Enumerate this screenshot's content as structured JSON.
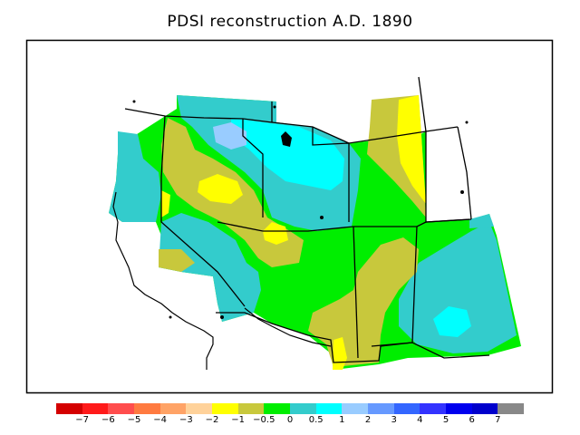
{
  "title": "PDSI reconstruction A.D. 1890",
  "legend": {
    "colors": [
      "#d40000",
      "#ff1a1a",
      "#ff4d4d",
      "#ff7a40",
      "#ffa366",
      "#ffd29a",
      "#ffff00",
      "#c8c83c",
      "#00ee00",
      "#33cccc",
      "#00ffff",
      "#99ccff",
      "#6699ff",
      "#3366ff",
      "#3333ff",
      "#0000ee",
      "#0000cc",
      "#888888"
    ],
    "labels": [
      "−7",
      "−6",
      "−5",
      "−4",
      "−3",
      "−2",
      "−1",
      "−0.5",
      "0",
      "0.5",
      "1",
      "2",
      "3",
      "4",
      "5",
      "6",
      "7"
    ]
  },
  "palette": {
    "wet_mid": "#33cccc",
    "wet": "#00ffff",
    "wetter": "#99ccff",
    "near_normal": "#00ee00",
    "dry_mild": "#c8c83c",
    "dry": "#ffff00"
  }
}
